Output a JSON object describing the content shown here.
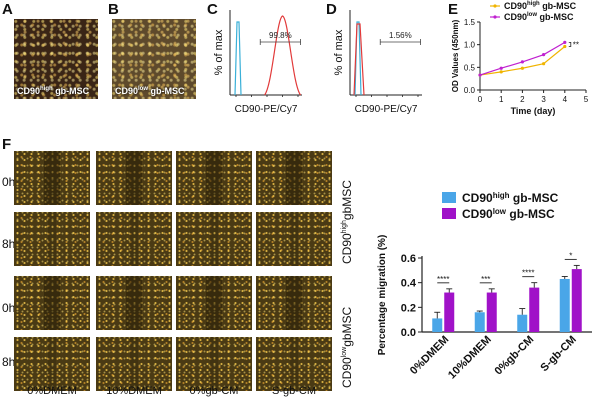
{
  "panels": {
    "A": {
      "letter": "A",
      "label_main": "CD90",
      "label_sup": "high",
      "label_tail": " gb-MSC"
    },
    "B": {
      "letter": "B",
      "label_main": "CD90",
      "label_sup": "low",
      "label_tail": " gb-MSC"
    },
    "C": {
      "letter": "C"
    },
    "D": {
      "letter": "D"
    },
    "E": {
      "letter": "E"
    },
    "F": {
      "letter": "F"
    }
  },
  "flow": [
    {
      "ylabel": "% of max",
      "xlabel": "CD90-PE/Cy7",
      "gate_text": "99.8%",
      "peak": "high"
    },
    {
      "ylabel": "% of max",
      "xlabel": "CD90-PE/Cy7",
      "gate_text": "1.56%",
      "peak": "low"
    }
  ],
  "chart_data": [
    {
      "type": "line",
      "xlabel": "Time (day)",
      "ylabel": "OD Values (450nm)",
      "xlim": [
        0,
        5
      ],
      "ylim": [
        0,
        1.5
      ],
      "xticks": [
        "0",
        "1",
        "2",
        "3",
        "4",
        "5"
      ],
      "yticks": [
        "0.0",
        "0.5",
        "1.0",
        "1.5"
      ],
      "legend_position": "top-right",
      "significance": "**",
      "series": [
        {
          "name_main": "CD90",
          "name_sup": "high",
          "name_tail": " gb-MSC",
          "color": "#f0b400",
          "x": [
            0,
            1,
            2,
            3,
            4
          ],
          "y": [
            0.33,
            0.4,
            0.48,
            0.58,
            0.96
          ]
        },
        {
          "name_main": "CD90",
          "name_sup": "low",
          "name_tail": " gb-MSC",
          "color": "#c020d0",
          "x": [
            0,
            1,
            2,
            3,
            4
          ],
          "y": [
            0.33,
            0.48,
            0.62,
            0.78,
            1.05
          ]
        }
      ]
    },
    {
      "type": "bar",
      "ylabel": "Percentage migration (%)",
      "ylim": [
        0,
        0.6
      ],
      "yticks": [
        "0.0",
        "0.2",
        "0.4",
        "0.6"
      ],
      "categories": [
        "0%DMEM",
        "10%DMEM",
        "0%gb-CM",
        "S-gb-CM"
      ],
      "significance": [
        "****",
        "***",
        "****",
        "*"
      ],
      "legend_position": "top-left",
      "series": [
        {
          "name_main": "CD90",
          "name_sup": "high",
          "name_tail": " gb-MSC",
          "color": "#4aa6e8",
          "values": [
            0.11,
            0.16,
            0.14,
            0.43
          ],
          "errors": [
            0.05,
            0.01,
            0.05,
            0.02
          ]
        },
        {
          "name_main": "CD90",
          "name_sup": "low",
          "name_tail": " gb-MSC",
          "color": "#a012c8",
          "values": [
            0.32,
            0.32,
            0.36,
            0.51
          ],
          "errors": [
            0.03,
            0.03,
            0.04,
            0.03
          ]
        }
      ]
    }
  ],
  "scratch": {
    "rows": [
      "0h",
      "8h",
      "0h",
      "8h"
    ],
    "columns": [
      "0%DMEM",
      "10%DMEM",
      "0%gb-CM",
      "S-gb-CM"
    ],
    "groups": [
      {
        "main": "CD90",
        "sup": "high",
        "tail": "gbMSC"
      },
      {
        "main": "CD90",
        "sup": "low",
        "tail": "gbMSC"
      }
    ]
  }
}
